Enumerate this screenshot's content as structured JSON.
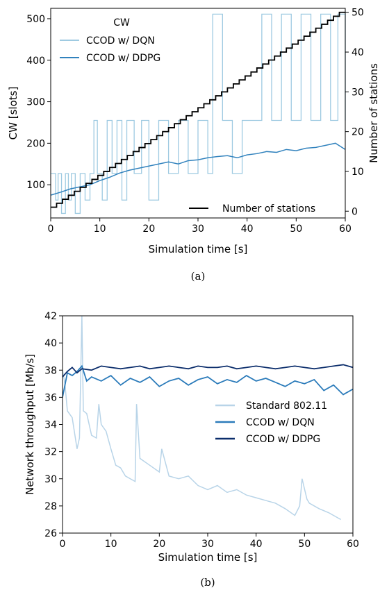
{
  "chart_data": [
    {
      "id": "a",
      "type": "line",
      "caption": "(a)",
      "xlabel": "Simulation time [s]",
      "ylabel": "CW [slots]",
      "y2label": "Number of stations",
      "xlim": [
        0,
        60
      ],
      "ylim": [
        20,
        525
      ],
      "y2lim": [
        -1.7,
        51
      ],
      "xticks": [
        0,
        10,
        20,
        30,
        40,
        50,
        60
      ],
      "yticks": [
        100,
        200,
        300,
        400,
        500
      ],
      "y2ticks": [
        0,
        10,
        20,
        30,
        40,
        50
      ],
      "legend_title": "CW",
      "legend_position": "upper-left",
      "legend2_position": "lower-right",
      "colors": {
        "dqn": "#9ecae1",
        "ddpg": "#3182bd",
        "stations": "#000000"
      },
      "series": [
        {
          "name": "CCOD w/ DQN",
          "axis": "left",
          "x": [
            0,
            1,
            1.5,
            2.2,
            3,
            3.6,
            4.2,
            5,
            6,
            7,
            8,
            8.8,
            9.5,
            10.5,
            11.5,
            12.5,
            13.5,
            14.5,
            15.5,
            17,
            18.5,
            20,
            22,
            24,
            26,
            28,
            30,
            32,
            33,
            35,
            37,
            39,
            41,
            43,
            45,
            47,
            49,
            51,
            53,
            55,
            57,
            58.5,
            60
          ],
          "values": [
            127,
            63,
            127,
            31,
            127,
            63,
            127,
            31,
            127,
            63,
            127,
            255,
            127,
            63,
            255,
            127,
            255,
            63,
            255,
            127,
            255,
            63,
            255,
            127,
            255,
            127,
            255,
            127,
            511,
            255,
            127,
            255,
            255,
            511,
            255,
            511,
            255,
            511,
            255,
            511,
            255,
            511,
            255
          ]
        },
        {
          "name": "CCOD w/ DDPG",
          "axis": "left",
          "x": [
            0,
            2,
            4,
            6,
            8,
            10,
            12,
            14,
            16,
            18,
            20,
            22,
            24,
            26,
            28,
            30,
            32,
            34,
            36,
            38,
            40,
            42,
            44,
            46,
            48,
            50,
            52,
            54,
            56,
            58,
            60
          ],
          "values": [
            75,
            82,
            90,
            95,
            100,
            110,
            118,
            128,
            135,
            140,
            145,
            150,
            155,
            150,
            158,
            160,
            165,
            168,
            170,
            165,
            172,
            175,
            180,
            178,
            185,
            182,
            188,
            190,
            195,
            200,
            185
          ]
        },
        {
          "name": "Number of stations",
          "axis": "right",
          "step_interval_s": 1.2,
          "start_value": 1,
          "end_value": 50
        }
      ]
    },
    {
      "id": "b",
      "type": "line",
      "caption": "(b)",
      "xlabel": "Simulation time [s]",
      "ylabel": "Network throughput [Mb/s]",
      "xlim": [
        0,
        60
      ],
      "ylim": [
        26,
        42
      ],
      "xticks": [
        0,
        10,
        20,
        30,
        40,
        50,
        60
      ],
      "yticks": [
        26,
        28,
        30,
        32,
        34,
        36,
        38,
        40,
        42
      ],
      "legend_position": "center-right",
      "colors": {
        "standard": "#b8d4e8",
        "dqn": "#2b7bba",
        "ddpg": "#0b2d6b"
      },
      "series": [
        {
          "name": "Standard 802.11",
          "x": [
            0,
            0.5,
            1,
            2,
            3,
            3.5,
            4,
            4.3,
            5,
            6,
            7,
            7.5,
            8,
            9,
            10,
            11,
            12,
            13,
            14,
            15,
            15.3,
            16,
            18,
            20,
            20.5,
            22,
            24,
            26,
            28,
            30,
            32,
            34,
            36,
            38,
            40,
            42,
            44,
            46,
            48,
            49,
            49.5,
            50.5,
            51,
            53,
            55,
            57,
            57.5
          ],
          "values": [
            38.0,
            37.0,
            35.0,
            34.5,
            32.2,
            33.0,
            42.0,
            35.0,
            34.8,
            33.2,
            33.0,
            35.5,
            34.0,
            33.5,
            32.2,
            31.0,
            30.8,
            30.2,
            30.0,
            29.8,
            35.5,
            31.5,
            31.0,
            30.5,
            32.2,
            30.2,
            30.0,
            30.2,
            29.5,
            29.2,
            29.5,
            29.0,
            29.2,
            28.8,
            28.6,
            28.4,
            28.2,
            27.8,
            27.3,
            28.0,
            30.0,
            28.5,
            28.2,
            27.8,
            27.5,
            27.1,
            27.0
          ]
        },
        {
          "name": "CCOD w/ DQN",
          "x": [
            0,
            1,
            2,
            3,
            4,
            5,
            6,
            8,
            10,
            12,
            14,
            16,
            18,
            20,
            22,
            24,
            26,
            28,
            30,
            32,
            34,
            36,
            38,
            40,
            42,
            44,
            46,
            48,
            50,
            52,
            54,
            56,
            58,
            60
          ],
          "values": [
            36.0,
            37.8,
            37.6,
            37.9,
            38.3,
            37.2,
            37.5,
            37.2,
            37.6,
            36.9,
            37.4,
            37.1,
            37.5,
            36.8,
            37.2,
            37.4,
            36.9,
            37.3,
            37.5,
            37.0,
            37.3,
            37.1,
            37.6,
            37.2,
            37.4,
            37.1,
            36.8,
            37.2,
            37.0,
            37.3,
            36.5,
            36.9,
            36.2,
            36.6
          ]
        },
        {
          "name": "CCOD w/ DDPG",
          "x": [
            0,
            1,
            2,
            3,
            4,
            6,
            8,
            10,
            12,
            14,
            16,
            18,
            20,
            22,
            24,
            26,
            28,
            30,
            32,
            34,
            36,
            38,
            40,
            42,
            44,
            46,
            48,
            50,
            52,
            54,
            56,
            58,
            60
          ],
          "values": [
            37.5,
            37.9,
            38.2,
            37.8,
            38.1,
            38.0,
            38.3,
            38.2,
            38.1,
            38.2,
            38.3,
            38.1,
            38.2,
            38.3,
            38.2,
            38.1,
            38.3,
            38.2,
            38.2,
            38.3,
            38.1,
            38.2,
            38.3,
            38.2,
            38.1,
            38.2,
            38.3,
            38.2,
            38.1,
            38.2,
            38.3,
            38.4,
            38.2
          ]
        }
      ]
    }
  ]
}
